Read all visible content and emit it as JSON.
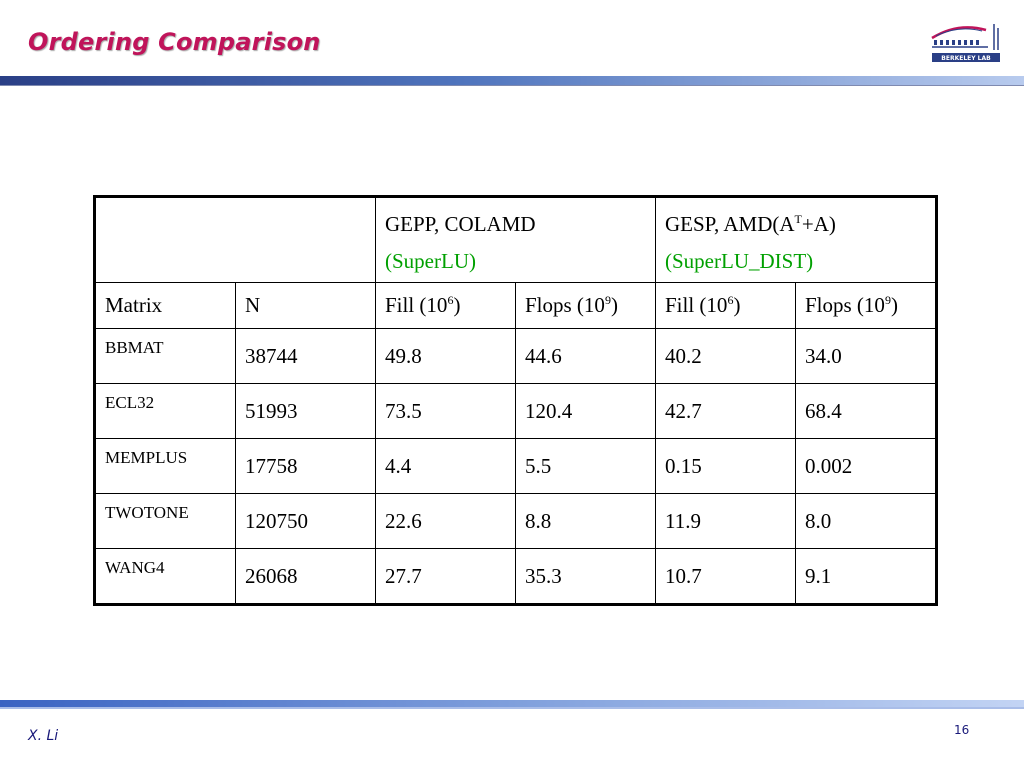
{
  "slide": {
    "title": "Ordering Comparison",
    "author": "X. Li",
    "page_number": "16",
    "logo_name": "berkeley-lab-logo",
    "logo_text": "BERKELEY LAB"
  },
  "table": {
    "group_headers": [
      {
        "line1": "GEPP, COLAMD",
        "line2": "(SuperLU)"
      },
      {
        "line1_prefix": "GESP, AMD(A",
        "line1_sup": "T",
        "line1_suffix": "+A)",
        "line2": "(SuperLU_DIST)"
      }
    ],
    "column_headers": {
      "matrix": "Matrix",
      "n": "N",
      "fill_a": {
        "text": "Fill (10",
        "sup": "6",
        "close": ")"
      },
      "flops_a": {
        "text": "Flops (10",
        "sup": "9",
        "close": ")"
      },
      "fill_b": {
        "text": "Fill (10",
        "sup": "6",
        "close": ")"
      },
      "flops_b": {
        "text": "Flops (10",
        "sup": "9",
        "close": ")"
      }
    },
    "rows": [
      [
        "BBMAT",
        "38744",
        "49.8",
        "44.6",
        "40.2",
        "34.0"
      ],
      [
        "ECL32",
        "51993",
        "73.5",
        "120.4",
        "42.7",
        "68.4"
      ],
      [
        "MEMPLUS",
        "17758",
        "4.4",
        "5.5",
        "0.15",
        "0.002"
      ],
      [
        "TWOTONE",
        "120750",
        "22.6",
        "8.8",
        "11.9",
        "8.0"
      ],
      [
        "WANG4",
        "26068",
        "27.7",
        "35.3",
        "10.7",
        "9.1"
      ]
    ]
  },
  "colors": {
    "title": "#c0145a",
    "subheader_green": "#00a000",
    "band_dark": "#2a3f86"
  }
}
